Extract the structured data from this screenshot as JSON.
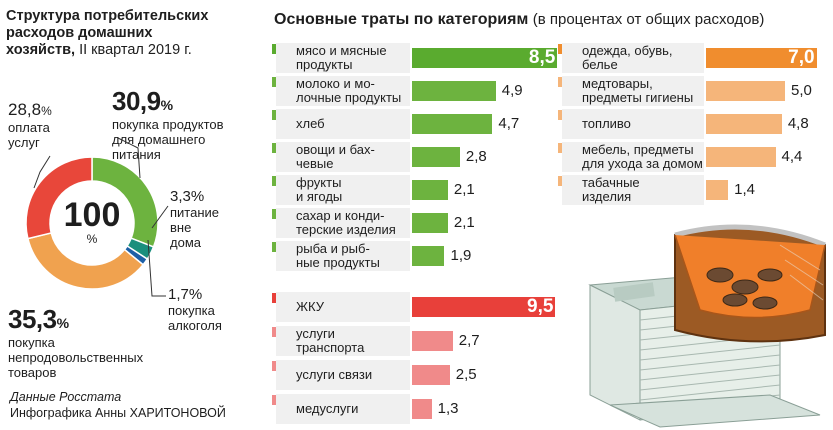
{
  "left_title": {
    "line1": "Структура потребительских",
    "line2": "расходов домашних",
    "line3": "хозяйств,",
    "line3_sub": "II квартал 2019 г."
  },
  "pie": {
    "center_value": "100",
    "center_unit": "%",
    "segments": [
      {
        "value": 30.9,
        "value_text": "30,9",
        "label": "покупка продуктов для домашнего питания",
        "label_lines": [
          "покупка продуктов",
          "для домашнего",
          "питания"
        ],
        "color": "#6db33f"
      },
      {
        "value": 3.3,
        "value_text": "3,3%",
        "label": "питание вне дома",
        "label_lines": [
          "питание",
          "вне",
          "дома"
        ],
        "color": "#1a8f7d"
      },
      {
        "value": 1.7,
        "value_text": "1,7%",
        "label": "покупка алкоголя",
        "label_lines": [
          "покупка",
          "алкоголя"
        ],
        "color": "#1d5fa6"
      },
      {
        "value": 35.3,
        "value_text": "35,3",
        "label": "покупка непродовольственных товаров",
        "label_lines": [
          "покупка",
          "непродовольственных",
          "товаров"
        ],
        "color": "#f0a24f"
      },
      {
        "value": 28.8,
        "value_text": "28,8",
        "label": "оплата услуг",
        "label_lines": [
          "оплата",
          "услуг"
        ],
        "color": "#e8473a"
      }
    ],
    "pct_sign": "%"
  },
  "source": {
    "line1": "Данные Росстата",
    "line2_prefix": "Инфографика Анны",
    "line2_name": "ХАРИТОНОВОЙ"
  },
  "right_title": {
    "bold": "Основные траты по категориям",
    "note": "(в процентах от общих расходов)"
  },
  "chart_data": [
    {
      "type": "bar",
      "title": "Основные траты по категориям",
      "subtitle": "(в процентах от общих расходов)",
      "group": "food",
      "color": "#6db33f",
      "highlight_color": "#5aab2f",
      "categories": [
        "мясо и мясные продукты",
        "молоко и молочные продукты",
        "хлеб",
        "овощи и бахчевые",
        "фрукты и ягоды",
        "сахар и кондитерские изделия",
        "рыба и рыбные продукты"
      ],
      "label_lines": [
        [
          "мясо и мясные",
          "продукты"
        ],
        [
          "молоко и мо-",
          "лочные продукты"
        ],
        [
          "хлеб"
        ],
        [
          "овощи и бах-",
          "чевые"
        ],
        [
          "фрукты",
          "и ягоды"
        ],
        [
          "сахар и конди-",
          "терские изделия"
        ],
        [
          "рыба и рыб-",
          "ные продукты"
        ]
      ],
      "values": [
        8.5,
        4.9,
        4.7,
        2.8,
        2.1,
        2.1,
        1.9
      ],
      "value_labels": [
        "8,5",
        "4,9",
        "4,7",
        "2,8",
        "2,1",
        "2,1",
        "1,9"
      ]
    },
    {
      "type": "bar",
      "group": "goods",
      "color": "#f5b57a",
      "highlight_color": "#f08d2e",
      "categories": [
        "одежда, обувь, белье",
        "медтовары, предметы гигиены",
        "топливо",
        "мебель, предметы для ухода за домом",
        "табачные изделия"
      ],
      "label_lines": [
        [
          "одежда, обувь,",
          "белье"
        ],
        [
          "медтовары,",
          "предметы гигиены"
        ],
        [
          "топливо"
        ],
        [
          "мебель, предметы",
          "для ухода за домом"
        ],
        [
          "табачные",
          "изделия"
        ]
      ],
      "values": [
        7.0,
        5.0,
        4.8,
        4.4,
        1.4
      ],
      "value_labels": [
        "7,0",
        "5,0",
        "4,8",
        "4,4",
        "1,4"
      ]
    },
    {
      "type": "bar",
      "group": "services",
      "color": "#f08a8a",
      "highlight_color": "#e8403a",
      "categories": [
        "ЖКУ",
        "услуги транспорта",
        "услуги связи",
        "медуслуги"
      ],
      "label_lines": [
        [
          "ЖКУ"
        ],
        [
          "услуги",
          "транспорта"
        ],
        [
          "услуги связи"
        ],
        [
          "медуслуги"
        ]
      ],
      "values": [
        9.5,
        2.7,
        2.5,
        1.3
      ],
      "value_labels": [
        "9,5",
        "2,7",
        "2,5",
        "1,3"
      ]
    }
  ]
}
